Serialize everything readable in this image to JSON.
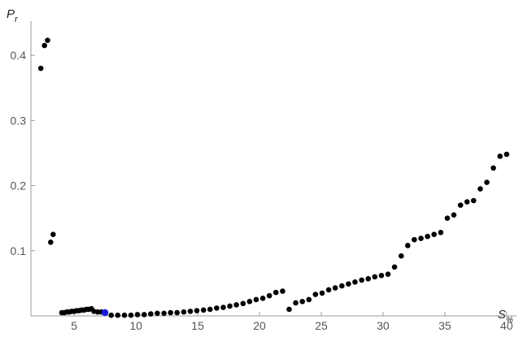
{
  "chart_data": {
    "type": "scatter",
    "xlabel": {
      "main": "S",
      "sub": "%"
    },
    "ylabel": {
      "main": "P",
      "sub": "r"
    },
    "xlim": [
      1.5,
      40.8
    ],
    "ylim": [
      0,
      0.44
    ],
    "xticks": [
      5,
      10,
      15,
      20,
      25,
      30,
      35,
      40
    ],
    "yticks": [
      0.1,
      0.2,
      0.3,
      0.4
    ],
    "series": [
      {
        "color": "#000000",
        "x": [
          2.3,
          2.6,
          2.85,
          3.1,
          3.3,
          4.0,
          4.2,
          4.4,
          4.6,
          4.8,
          5.0,
          5.2,
          5.4,
          5.6,
          5.8,
          6.0,
          6.2,
          6.4,
          6.6,
          6.9,
          7.2,
          8.0,
          8.53,
          9.07,
          9.6,
          10.13,
          10.67,
          11.2,
          11.73,
          12.27,
          12.8,
          13.33,
          13.87,
          14.4,
          14.93,
          15.47,
          16.0,
          16.53,
          17.07,
          17.6,
          18.13,
          18.67,
          19.2,
          19.73,
          20.27,
          20.8,
          21.33,
          21.87,
          22.4,
          22.93,
          23.47,
          24.0,
          24.53,
          25.07,
          25.6,
          26.13,
          26.67,
          27.2,
          27.73,
          28.27,
          28.8,
          29.33,
          29.87,
          30.4,
          30.93,
          31.47,
          32.0,
          32.53,
          33.07,
          33.6,
          34.13,
          34.67,
          35.2,
          35.73,
          36.27,
          36.8,
          37.33,
          37.87,
          38.4,
          38.93,
          39.47,
          40.0
        ],
        "y": [
          0.38,
          0.415,
          0.423,
          0.113,
          0.125,
          0.005,
          0.005,
          0.006,
          0.006,
          0.007,
          0.007,
          0.008,
          0.008,
          0.009,
          0.009,
          0.01,
          0.01,
          0.011,
          0.007,
          0.006,
          0.006,
          0.001,
          0.001,
          0.001,
          0.001,
          0.002,
          0.002,
          0.003,
          0.004,
          0.004,
          0.005,
          0.005,
          0.006,
          0.007,
          0.008,
          0.009,
          0.01,
          0.012,
          0.013,
          0.015,
          0.017,
          0.019,
          0.022,
          0.025,
          0.027,
          0.031,
          0.036,
          0.038,
          0.01,
          0.02,
          0.022,
          0.025,
          0.033,
          0.035,
          0.04,
          0.043,
          0.046,
          0.049,
          0.052,
          0.055,
          0.057,
          0.06,
          0.062,
          0.064,
          0.075,
          0.092,
          0.108,
          0.117,
          0.119,
          0.122,
          0.125,
          0.128,
          0.15,
          0.155,
          0.17,
          0.175,
          0.177,
          0.195,
          0.205,
          0.227,
          0.245,
          0.248
        ]
      },
      {
        "color": "#1a1adc",
        "x": [
          7.5
        ],
        "y": [
          0.005
        ]
      }
    ]
  }
}
